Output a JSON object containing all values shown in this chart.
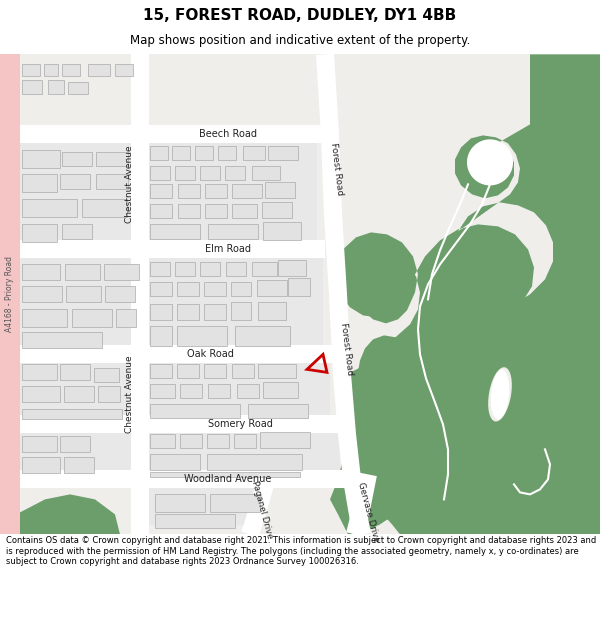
{
  "title": "15, FOREST ROAD, DUDLEY, DY1 4BB",
  "subtitle": "Map shows position and indicative extent of the property.",
  "footer": "Contains OS data © Crown copyright and database right 2021. This information is subject to Crown copyright and database rights 2023 and is reproduced with the permission of HM Land Registry. The polygons (including the associated geometry, namely x, y co-ordinates) are subject to Crown copyright and database rights 2023 Ordnance Survey 100026316.",
  "bg_color": "#ffffff",
  "map_bg": "#f0eeeb",
  "road_color": "#ffffff",
  "building_color": "#e2e2e2",
  "building_edge": "#aaaaaa",
  "green_color": "#6b9e6b",
  "priory_road_color": "#f5c5c5",
  "red_plot_color": "#cc0000"
}
